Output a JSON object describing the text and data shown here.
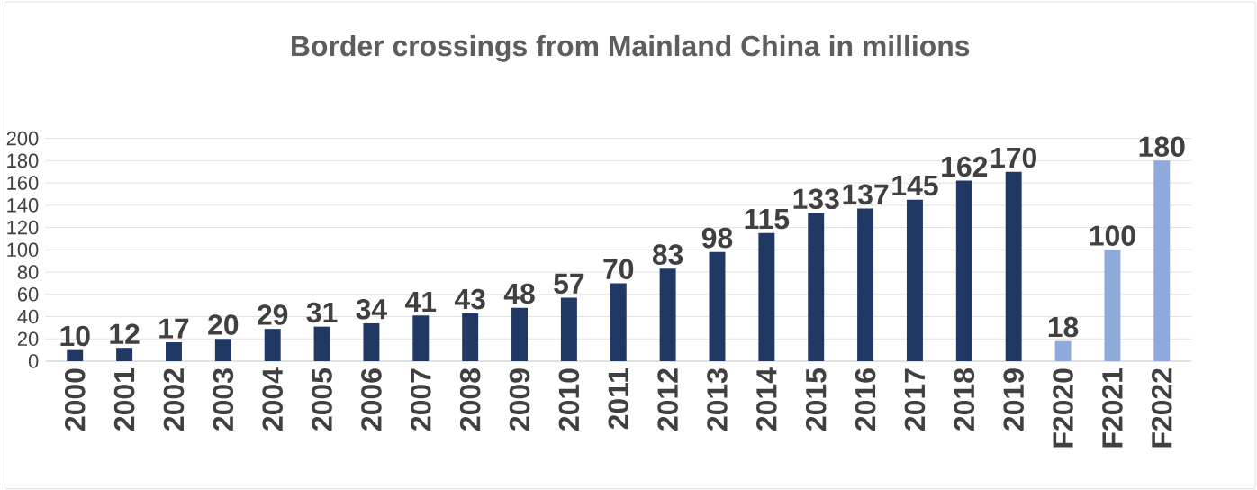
{
  "chart_data": {
    "type": "bar",
    "title": "Border crossings from Mainland China in millions",
    "categories": [
      "2000",
      "2001",
      "2002",
      "2003",
      "2004",
      "2005",
      "2006",
      "2007",
      "2008",
      "2009",
      "2010",
      "2011",
      "2012",
      "2013",
      "2014",
      "2015",
      "2016",
      "2017",
      "2018",
      "2019",
      "F2020",
      "F2021",
      "F2022"
    ],
    "values": [
      10,
      12,
      17,
      20,
      29,
      31,
      34,
      41,
      43,
      48,
      57,
      70,
      83,
      98,
      115,
      133,
      137,
      145,
      162,
      170,
      18,
      100,
      180
    ],
    "colors": [
      "#203864",
      "#203864",
      "#203864",
      "#203864",
      "#203864",
      "#203864",
      "#203864",
      "#203864",
      "#203864",
      "#203864",
      "#203864",
      "#203864",
      "#203864",
      "#203864",
      "#203864",
      "#203864",
      "#203864",
      "#203864",
      "#203864",
      "#203864",
      "#8eaadb",
      "#8eaadb",
      "#8eaadb"
    ],
    "ylim": [
      0,
      200
    ],
    "yticks": [
      0,
      20,
      40,
      60,
      80,
      100,
      120,
      140,
      160,
      180,
      200
    ],
    "grid": "y",
    "data_labels": true
  }
}
